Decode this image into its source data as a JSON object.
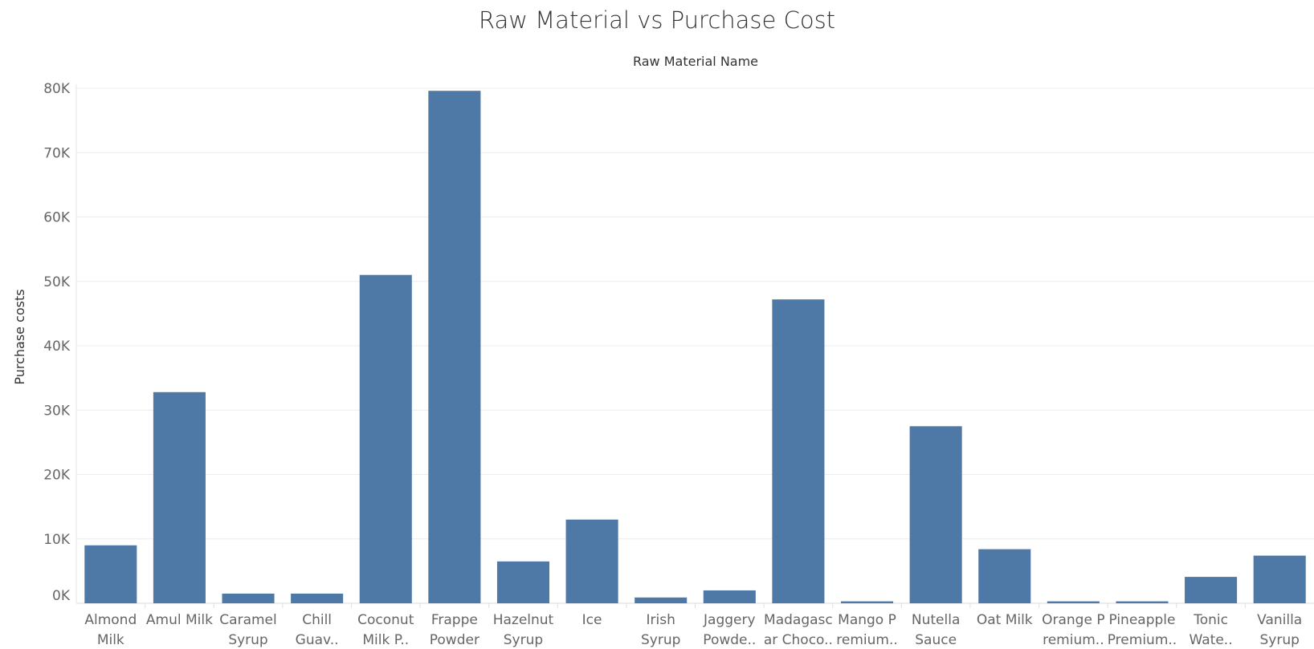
{
  "chart_data": {
    "type": "bar",
    "title": "Raw Material vs Purchase Cost",
    "xlabel": "Raw Material Name",
    "ylabel": "Purchase costs",
    "ylim": [
      0,
      80000
    ],
    "yticks": [
      0,
      10000,
      20000,
      30000,
      40000,
      50000,
      60000,
      70000,
      80000
    ],
    "ytick_labels": [
      "0K",
      "10K",
      "20K",
      "30K",
      "40K",
      "50K",
      "60K",
      "70K",
      "80K"
    ],
    "grid": true,
    "bar_color": "#4e79a7",
    "categories": [
      [
        "Almond",
        "Milk"
      ],
      [
        "Amul Milk"
      ],
      [
        "Caramel",
        "Syrup"
      ],
      [
        "Chill",
        "Guav.."
      ],
      [
        "Coconut",
        "Milk P.."
      ],
      [
        "Frappe",
        "Powder"
      ],
      [
        "Hazelnut",
        "Syrup"
      ],
      [
        "Ice"
      ],
      [
        "Irish",
        "Syrup"
      ],
      [
        "Jaggery",
        "Powde.."
      ],
      [
        "Madagasc",
        "ar Choco.."
      ],
      [
        "Mango P",
        "remium.."
      ],
      [
        "Nutella",
        "Sauce"
      ],
      [
        "Oat Milk"
      ],
      [
        "Orange P",
        "remium.."
      ],
      [
        "Pineapple",
        "Premium.."
      ],
      [
        "Tonic",
        "Wate.."
      ],
      [
        "Vanilla",
        "Syrup"
      ]
    ],
    "values": [
      9000,
      32800,
      1500,
      1500,
      51000,
      79600,
      6500,
      13000,
      900,
      2000,
      47200,
      300,
      27500,
      8400,
      300,
      300,
      4100,
      7400
    ]
  }
}
